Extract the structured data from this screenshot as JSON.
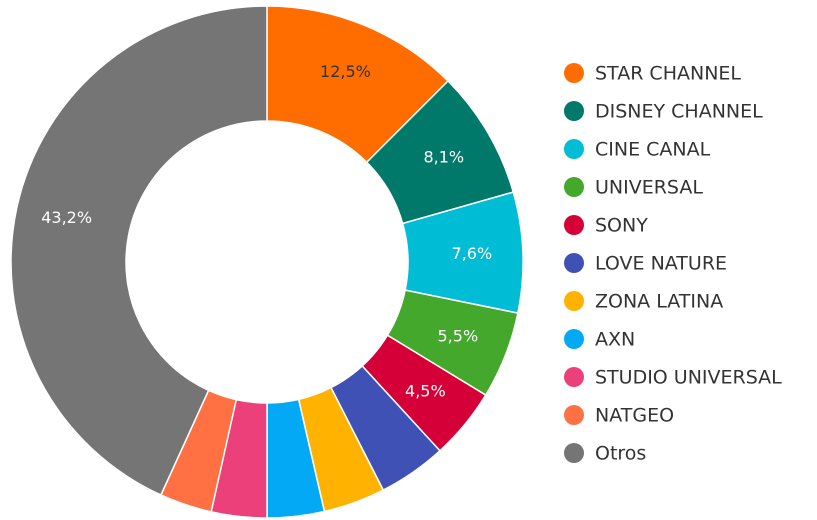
{
  "chart_data": {
    "type": "donut",
    "categories": [
      "STAR CHANNEL",
      "DISNEY CHANNEL",
      "CINE CANAL",
      "UNIVERSAL",
      "SONY",
      "LOVE NATURE",
      "ZONA LATINA",
      "AXN",
      "STUDIO UNIVERSAL",
      "NATGEO",
      "Otros"
    ],
    "values": [
      12.5,
      8.1,
      7.6,
      5.5,
      4.5,
      4.3,
      3.9,
      3.6,
      3.5,
      3.3,
      43.2
    ],
    "value_labels": [
      "12,5%",
      "8,1%",
      "7,6%",
      "5,5%",
      "4,5%",
      null,
      null,
      null,
      null,
      null,
      "43,2%"
    ],
    "colors": [
      "#ff6d00",
      "#00796b",
      "#00bcd4",
      "#43a82c",
      "#d50037",
      "#3f51b5",
      "#ffb300",
      "#03a9f4",
      "#ec407a",
      "#ff7043",
      "#757575"
    ],
    "legend": "right"
  }
}
